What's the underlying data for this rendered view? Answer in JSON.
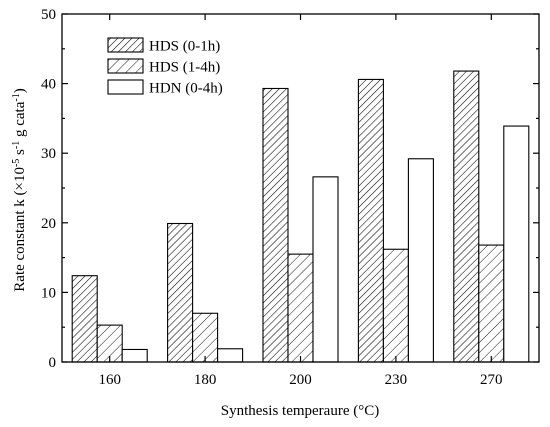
{
  "chart_data": {
    "type": "bar",
    "categories": [
      "160",
      "180",
      "200",
      "230",
      "270"
    ],
    "series": [
      {
        "name": "HDS (0-1h)",
        "values": [
          12.4,
          19.9,
          39.3,
          40.6,
          41.8
        ],
        "fill": "hatch-dense"
      },
      {
        "name": "HDS (1-4h)",
        "values": [
          5.3,
          7.0,
          15.5,
          16.2,
          16.8
        ],
        "fill": "hatch-sparse"
      },
      {
        "name": "HDN (0-4h)",
        "values": [
          1.8,
          1.9,
          26.6,
          29.2,
          33.9
        ],
        "fill": "white"
      }
    ],
    "xlabel": "Synthesis temperaure (°C)",
    "ylabel": {
      "base": "Rate constant k (×10",
      "exp1": "-5",
      "mid1": " s",
      "exp2": "-1",
      "mid2": " g cata",
      "exp3": "-1",
      "tail": ")"
    },
    "ylim": [
      0,
      50
    ],
    "yticks": [
      "0",
      "10",
      "20",
      "30",
      "40",
      "50"
    ],
    "grid": false,
    "legend_position": "top-left",
    "colors": {
      "stroke": "#000000",
      "fill": "#ffffff"
    }
  }
}
